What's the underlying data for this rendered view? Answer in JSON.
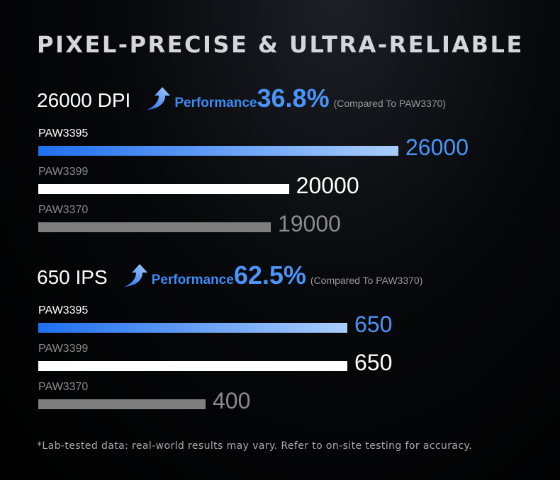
{
  "title": "PIXEL-PRECISE & ULTRA-RELIABLE",
  "footnote": "*Lab-tested data: real-world results may vary. Refer to on-site testing for accuracy.",
  "colors": {
    "blue_start": "#1f6ff0",
    "blue_end": "#a9cdfc",
    "blue_text": "#4a94f8",
    "white": "#ffffff",
    "gray": "#7f7f7f",
    "gray_text": "#8a8a8a"
  },
  "chart_data": [
    {
      "type": "bar",
      "orientation": "horizontal",
      "metric_label": "26000 DPI",
      "performance_label": "Performance",
      "performance_value": "36.8%",
      "comparison_note": "(Compared To PAW3370)",
      "categories": [
        "PAW3395",
        "PAW3399",
        "PAW3370"
      ],
      "values": [
        26000,
        20000,
        19000
      ],
      "value_labels": [
        "26000",
        "20000",
        "19000"
      ],
      "xlim": [
        6250,
        26000
      ]
    },
    {
      "type": "bar",
      "orientation": "horizontal",
      "metric_label": "650 IPS",
      "performance_label": "Performance",
      "performance_value": "62.5%",
      "comparison_note": "(Compared To PAW3370)",
      "categories": [
        "PAW3395",
        "PAW3399",
        "PAW3370"
      ],
      "values": [
        650,
        650,
        400
      ],
      "value_labels": [
        "650",
        "650",
        "400"
      ],
      "xlim": [
        105,
        650
      ]
    }
  ]
}
